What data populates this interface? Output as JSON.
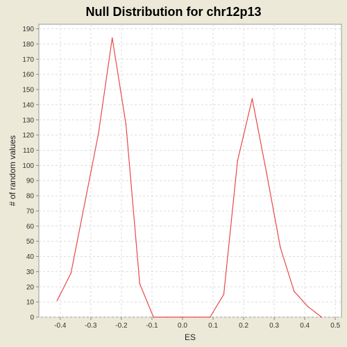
{
  "chart_data": {
    "type": "line",
    "title": "Null Distribution for chr12p13",
    "xlabel": "ES",
    "ylabel": "# of random values",
    "xlim": [
      -0.47,
      0.52
    ],
    "ylim": [
      0,
      193
    ],
    "x_ticks": [
      -0.4,
      -0.3,
      -0.2,
      -0.1,
      0.0,
      0.1,
      0.2,
      0.3,
      0.4,
      0.5
    ],
    "x_tick_labels": [
      "-0.4",
      "-0.3",
      "-0.2",
      "-0.1",
      "0.0",
      "0.1",
      "0.2",
      "0.3",
      "0.4",
      "0.5"
    ],
    "y_ticks": [
      0,
      10,
      20,
      30,
      40,
      50,
      60,
      70,
      80,
      90,
      100,
      110,
      120,
      130,
      140,
      150,
      160,
      170,
      180,
      190
    ],
    "y_tick_labels": [
      "0",
      "10",
      "20",
      "30",
      "40",
      "50",
      "60",
      "70",
      "80",
      "90",
      "100",
      "110",
      "120",
      "130",
      "140",
      "150",
      "160",
      "170",
      "180",
      "190"
    ],
    "grid": true,
    "legend": "none",
    "series": [
      {
        "color": "#e8474a",
        "x": [
          -0.41,
          -0.365,
          -0.275,
          -0.23,
          -0.185,
          -0.14,
          -0.095,
          -0.05,
          -0.005,
          0.04,
          0.09,
          0.135,
          0.18,
          0.228,
          0.275,
          0.32,
          0.365,
          0.41,
          0.455
        ],
        "y": [
          11,
          29,
          121,
          184,
          127,
          22,
          0,
          0,
          0,
          0,
          0,
          15,
          103,
          144,
          95,
          46,
          17,
          7,
          0
        ]
      }
    ]
  },
  "colors": {
    "background": "#ece9d8",
    "plot_background": "#ffffff",
    "grid": "#dcdcdc",
    "line": "#e8474a"
  }
}
